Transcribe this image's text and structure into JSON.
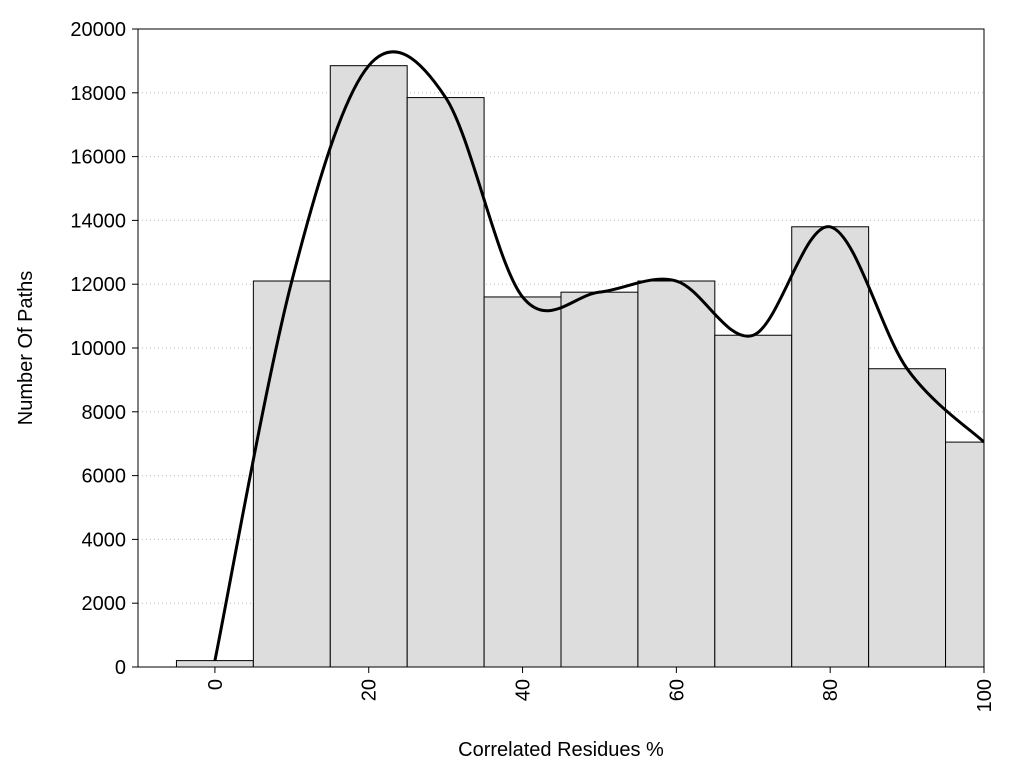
{
  "chart_data": {
    "type": "histogram",
    "x_label": "Correlated Residues %",
    "y_label": "Number Of Paths",
    "x": [
      0,
      10,
      20,
      30,
      40,
      50,
      60,
      70,
      80,
      90,
      100
    ],
    "values": [
      200,
      12100,
      18850,
      17850,
      11600,
      11750,
      12100,
      10400,
      13800,
      9350,
      7050
    ],
    "color": "#dddddd",
    "line_color": "#000000",
    "smooth_line": true,
    "xlim": [
      -10,
      100
    ],
    "ylim": [
      0,
      20000
    ],
    "xticks": [
      0,
      20,
      40,
      60,
      80,
      100
    ],
    "yticks": [
      0,
      2000,
      4000,
      6000,
      8000,
      10000,
      12000,
      14000,
      16000,
      18000,
      20000
    ],
    "grid": true
  }
}
